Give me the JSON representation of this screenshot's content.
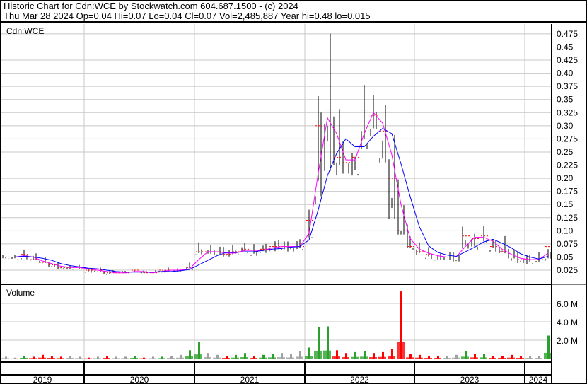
{
  "header": {
    "title": "Historic Chart for Cdn:WCE by Stockwatch.com 604.687.1500 - (c) 2024",
    "quote": "Thu Mar 28 2024  Op=0.04  Hi=0.07  Lo=0.04  Cl=0.07  Vol=2,485,887  Year hi=0.48  lo=0.015"
  },
  "chart_data": [
    {
      "type": "bar",
      "panel": "price",
      "title": "Cdn:WCE",
      "ylim": [
        0.015,
        0.48
      ],
      "y_ticks": [
        "0.025",
        "0.05",
        "0.075",
        "0.10",
        "0.125",
        "0.15",
        "0.175",
        "0.20",
        "0.225",
        "0.25",
        "0.275",
        "0.30",
        "0.325",
        "0.35",
        "0.375",
        "0.40",
        "0.425",
        "0.45",
        "0.475"
      ],
      "x_ticks": [
        "2019",
        "2020",
        "2021",
        "2022",
        "2023",
        "2024"
      ],
      "grid": true,
      "months": [
        "2019-04",
        "2019-05",
        "2019-06",
        "2019-07",
        "2019-08",
        "2019-09",
        "2019-10",
        "2019-11",
        "2019-12",
        "2020-01",
        "2020-02",
        "2020-03",
        "2020-04",
        "2020-05",
        "2020-06",
        "2020-07",
        "2020-08",
        "2020-09",
        "2020-10",
        "2020-11",
        "2020-12",
        "2021-01",
        "2021-02",
        "2021-03",
        "2021-04",
        "2021-05",
        "2021-06",
        "2021-07",
        "2021-08",
        "2021-09",
        "2021-10",
        "2021-11",
        "2021-12",
        "2022-01",
        "2022-02",
        "2022-03",
        "2022-04",
        "2022-05",
        "2022-06",
        "2022-07",
        "2022-08",
        "2022-09",
        "2022-10",
        "2022-11",
        "2022-12",
        "2023-01",
        "2023-02",
        "2023-03",
        "2023-04",
        "2023-05",
        "2023-06",
        "2023-07",
        "2023-08",
        "2023-09",
        "2023-10",
        "2023-11",
        "2023-12",
        "2024-01",
        "2024-02",
        "2024-03"
      ],
      "high": [
        0.055,
        0.055,
        0.065,
        0.06,
        0.05,
        0.04,
        0.04,
        0.035,
        0.035,
        0.03,
        0.03,
        0.025,
        0.025,
        0.025,
        0.025,
        0.025,
        0.025,
        0.025,
        0.03,
        0.03,
        0.04,
        0.08,
        0.075,
        0.07,
        0.07,
        0.075,
        0.08,
        0.075,
        0.08,
        0.08,
        0.085,
        0.08,
        0.09,
        0.14,
        0.42,
        0.48,
        0.35,
        0.27,
        0.26,
        0.38,
        0.37,
        0.35,
        0.29,
        0.2,
        0.12,
        0.08,
        0.07,
        0.06,
        0.06,
        0.06,
        0.11,
        0.1,
        0.11,
        0.09,
        0.09,
        0.07,
        0.06,
        0.06,
        0.06,
        0.07
      ],
      "low": [
        0.045,
        0.045,
        0.045,
        0.04,
        0.035,
        0.03,
        0.025,
        0.025,
        0.025,
        0.02,
        0.02,
        0.015,
        0.02,
        0.02,
        0.02,
        0.02,
        0.02,
        0.02,
        0.02,
        0.02,
        0.025,
        0.05,
        0.05,
        0.05,
        0.05,
        0.05,
        0.055,
        0.05,
        0.055,
        0.055,
        0.06,
        0.06,
        0.06,
        0.07,
        0.12,
        0.2,
        0.19,
        0.19,
        0.2,
        0.24,
        0.27,
        0.2,
        0.12,
        0.07,
        0.05,
        0.05,
        0.045,
        0.04,
        0.04,
        0.04,
        0.06,
        0.06,
        0.07,
        0.06,
        0.05,
        0.04,
        0.035,
        0.035,
        0.035,
        0.04
      ],
      "close": [
        0.05,
        0.05,
        0.055,
        0.045,
        0.04,
        0.035,
        0.03,
        0.03,
        0.03,
        0.025,
        0.025,
        0.02,
        0.02,
        0.02,
        0.025,
        0.02,
        0.02,
        0.025,
        0.025,
        0.025,
        0.03,
        0.06,
        0.06,
        0.06,
        0.055,
        0.06,
        0.065,
        0.06,
        0.065,
        0.07,
        0.07,
        0.07,
        0.07,
        0.12,
        0.3,
        0.33,
        0.24,
        0.23,
        0.24,
        0.33,
        0.32,
        0.29,
        0.2,
        0.1,
        0.07,
        0.06,
        0.055,
        0.05,
        0.05,
        0.05,
        0.09,
        0.085,
        0.09,
        0.07,
        0.06,
        0.05,
        0.045,
        0.045,
        0.045,
        0.07
      ],
      "ma_colors": {
        "short": "#ff00ff",
        "long": "#0000ff"
      }
    },
    {
      "type": "bar",
      "panel": "volume",
      "title": "Volume",
      "ylim": [
        0,
        7.5
      ],
      "y_ticks": [
        "2.0 M",
        "4.0 M",
        "6.0 M"
      ],
      "unit": "M shares",
      "values": [
        0.2,
        0.1,
        0.3,
        0.2,
        0.4,
        0.3,
        0.2,
        0.3,
        0.2,
        0.1,
        0.2,
        0.3,
        0.2,
        0.2,
        0.3,
        0.1,
        0.2,
        0.2,
        0.3,
        0.4,
        0.9,
        1.8,
        0.6,
        0.4,
        0.3,
        0.4,
        0.6,
        0.3,
        0.4,
        0.5,
        0.6,
        0.5,
        0.8,
        1.2,
        3.4,
        3.5,
        0.9,
        0.6,
        0.7,
        0.8,
        0.6,
        0.7,
        1.0,
        7.3,
        0.5,
        0.4,
        0.3,
        0.3,
        0.3,
        0.4,
        0.8,
        0.5,
        0.5,
        0.3,
        0.3,
        0.4,
        0.3,
        0.3,
        0.3,
        2.5
      ],
      "colors": {
        "up": "#2ca02c",
        "down": "#ff0000",
        "flat": "#a0a0a0"
      }
    }
  ]
}
